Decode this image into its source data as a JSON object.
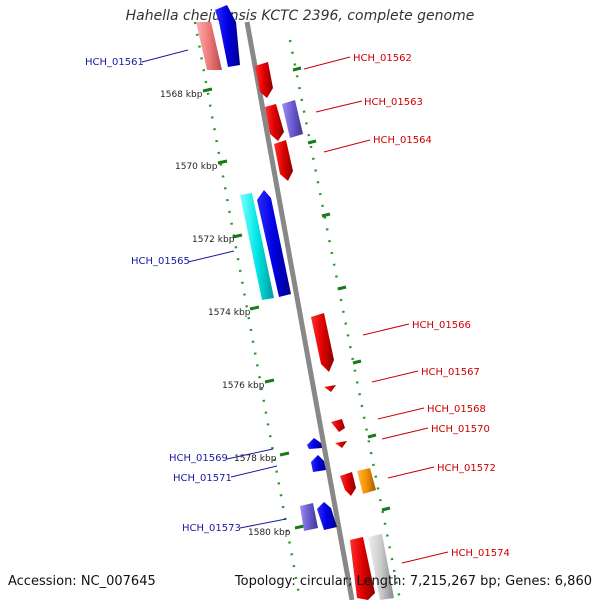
{
  "title": "Hahella chejuensis KCTC 2396, complete genome",
  "footer": {
    "accession": "Accession: NC_007645",
    "topology": "Topology: circular; Length: 7,215,267 bp; Genes: 6,860"
  },
  "scale_labels": [
    "1568 kbp",
    "1570 kbp",
    "1572 kbp",
    "1574 kbp",
    "1576 kbp",
    "1578 kbp",
    "1580 kbp"
  ],
  "genes": [
    {
      "id": "HCH_01561",
      "strand": "left",
      "color": "#0000dd"
    },
    {
      "id": "HCH_01562",
      "strand": "right",
      "color": "#dd0000"
    },
    {
      "id": "HCH_01563",
      "strand": "right",
      "color": "#dd0000"
    },
    {
      "id": "HCH_01564",
      "strand": "right",
      "color": "#dd0000"
    },
    {
      "id": "HCH_01565",
      "strand": "left",
      "color": "#0000dd"
    },
    {
      "id": "HCH_01566",
      "strand": "right",
      "color": "#dd0000"
    },
    {
      "id": "HCH_01567",
      "strand": "right",
      "color": "#dd0000"
    },
    {
      "id": "HCH_01568",
      "strand": "right",
      "color": "#dd0000"
    },
    {
      "id": "HCH_01569",
      "strand": "left",
      "color": "#0000dd"
    },
    {
      "id": "HCH_01570",
      "strand": "right",
      "color": "#dd0000"
    },
    {
      "id": "HCH_01571",
      "strand": "left",
      "color": "#0000dd"
    },
    {
      "id": "HCH_01572",
      "strand": "right",
      "color": "#dd0000"
    },
    {
      "id": "HCH_01573",
      "strand": "left",
      "color": "#0000dd"
    },
    {
      "id": "HCH_01574",
      "strand": "right",
      "color": "#dd0000"
    }
  ]
}
